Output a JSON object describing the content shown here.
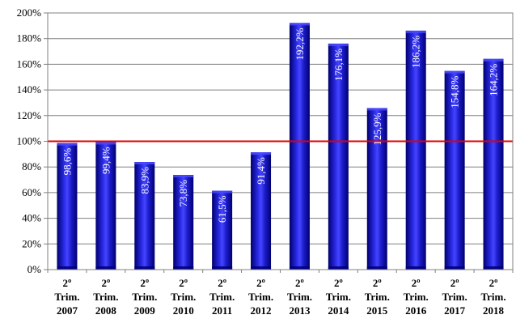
{
  "chart_data": {
    "type": "bar",
    "categories": [
      [
        "2º",
        "Trim.",
        "2007"
      ],
      [
        "2º",
        "Trim.",
        "2008"
      ],
      [
        "2º",
        "Trim.",
        "2009"
      ],
      [
        "2º",
        "Trim.",
        "2010"
      ],
      [
        "2º",
        "Trim.",
        "2011"
      ],
      [
        "2º",
        "Trim.",
        "2012"
      ],
      [
        "2º",
        "Trim.",
        "2013"
      ],
      [
        "2º",
        "Trim.",
        "2014"
      ],
      [
        "2º",
        "Trim.",
        "2015"
      ],
      [
        "2º",
        "Trim.",
        "2016"
      ],
      [
        "2º",
        "Trim.",
        "2017"
      ],
      [
        "2º",
        "Trim.",
        "2018"
      ]
    ],
    "values": [
      98.6,
      99.4,
      83.9,
      73.8,
      61.5,
      91.4,
      192.2,
      176.1,
      125.9,
      186.2,
      154.8,
      164.2
    ],
    "data_labels": [
      "98,6%",
      "99,4%",
      "83,9%",
      "73,8%",
      "61,5%",
      "91,4%",
      "192,2%",
      "176,1%",
      "125,9%",
      "186,2%",
      "154,8%",
      "164,2%"
    ],
    "y_ticks": [
      {
        "value": 0,
        "label": "0%"
      },
      {
        "value": 20,
        "label": "20%"
      },
      {
        "value": 40,
        "label": "40%"
      },
      {
        "value": 60,
        "label": "60%"
      },
      {
        "value": 80,
        "label": "80%"
      },
      {
        "value": 100,
        "label": "100%"
      },
      {
        "value": 120,
        "label": "120%"
      },
      {
        "value": 140,
        "label": "140%"
      },
      {
        "value": 160,
        "label": "160%"
      },
      {
        "value": 180,
        "label": "180%"
      },
      {
        "value": 200,
        "label": "200%"
      }
    ],
    "ylim": [
      0,
      200
    ],
    "reference_line": {
      "value": 100,
      "color": "#e00000"
    },
    "grid": true,
    "legend": "none",
    "title": "",
    "xlabel": "",
    "ylabel": "",
    "colors": {
      "bar": "#1a1acc",
      "bar_dark": "#00007a",
      "bar_light": "#4a4aff",
      "grid": "#808080"
    }
  }
}
